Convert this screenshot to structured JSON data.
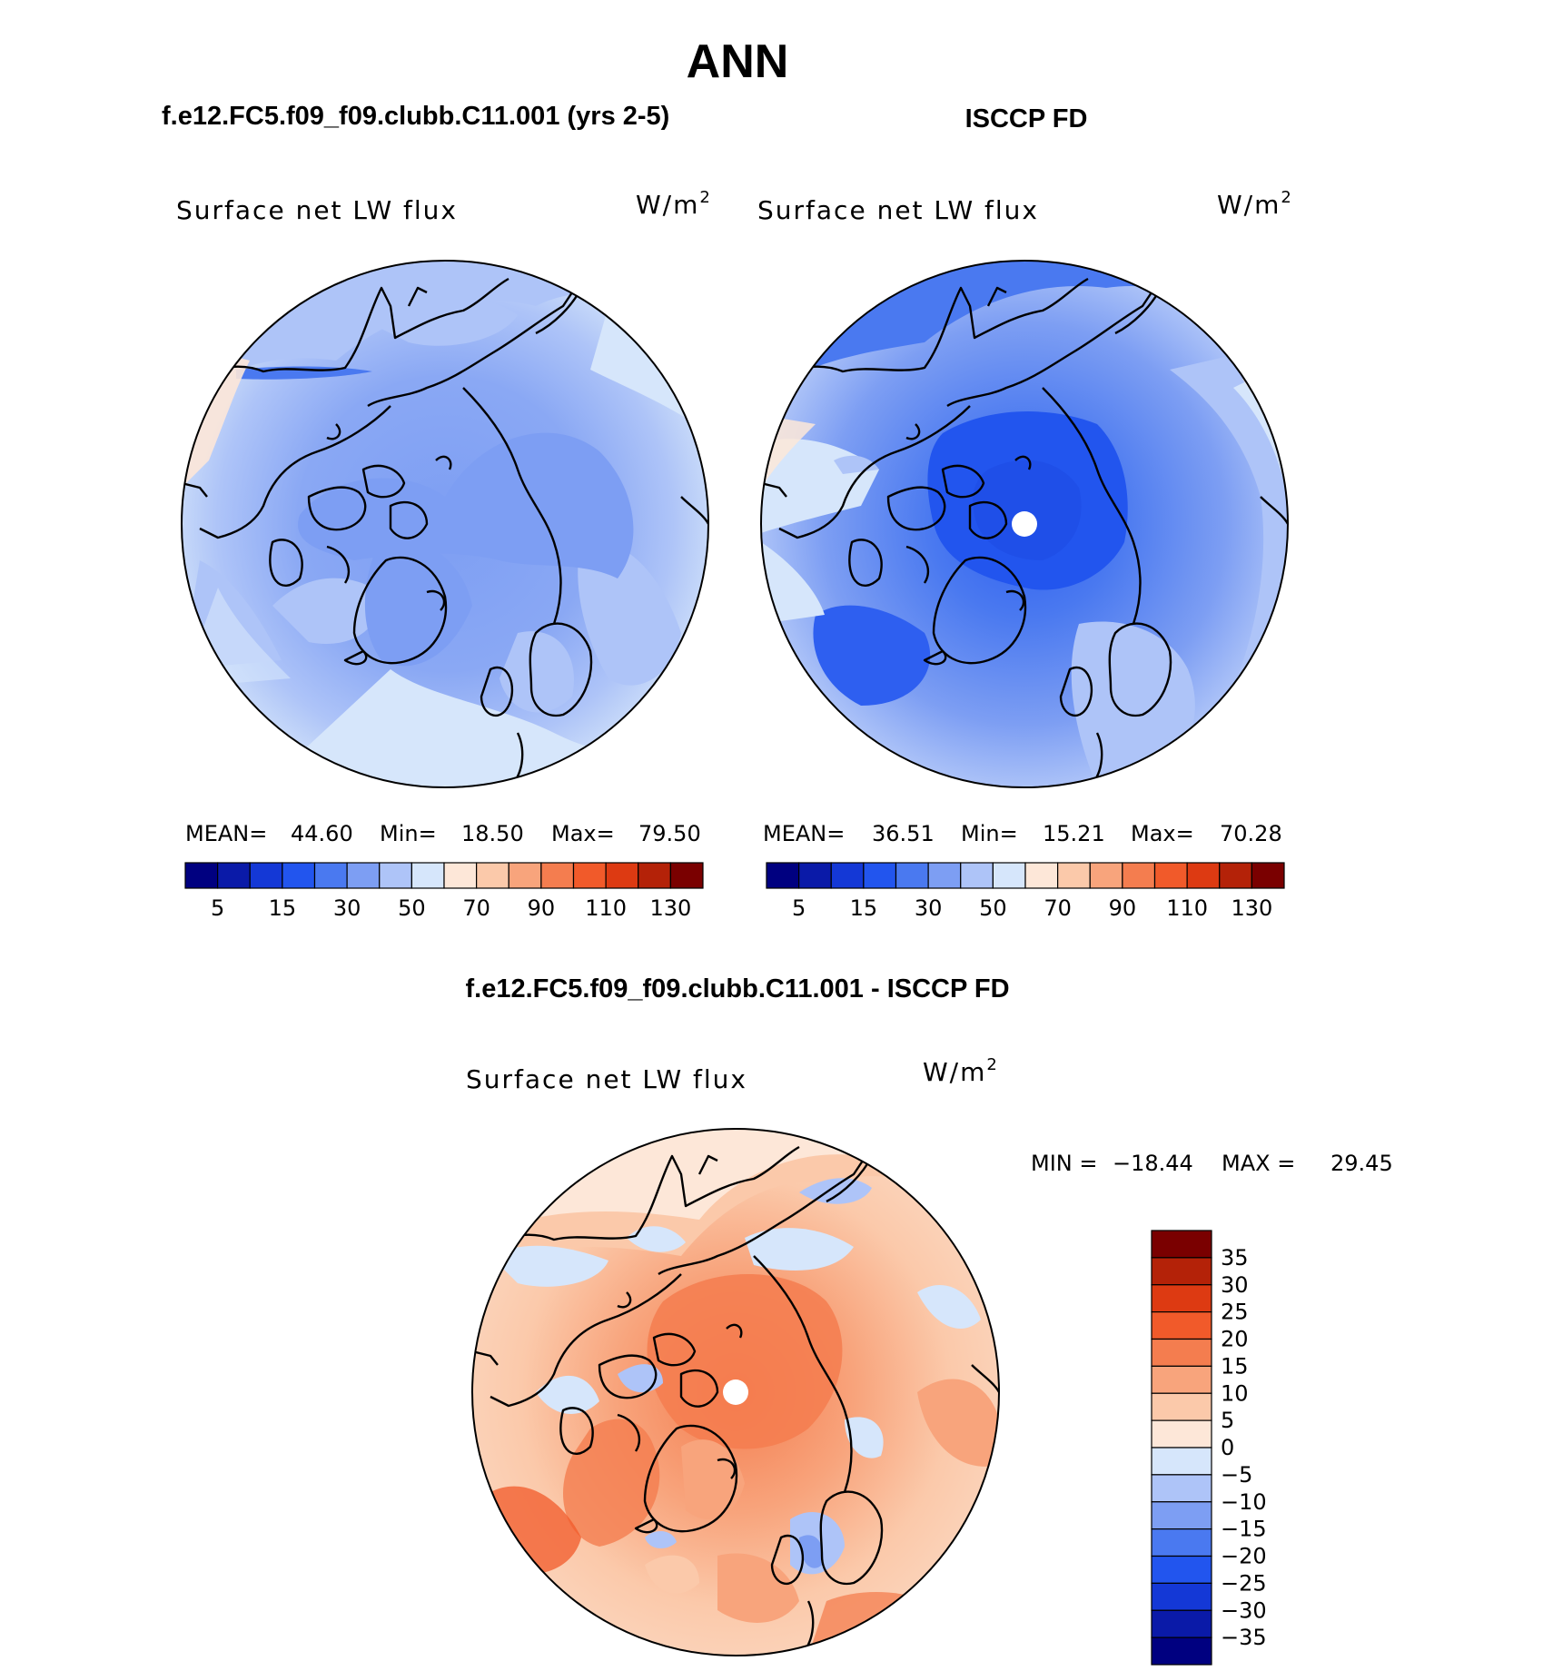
{
  "figure": {
    "title": "ANN",
    "top_left_title": "f.e12.FC5.f09_f09.clubb.C11.001 (yrs 2-5)",
    "top_right_title": "ISCCP FD",
    "bottom_title": "f.e12.FC5.f09_f09.clubb.C11.001 - ISCCP FD"
  },
  "chart_data": [
    {
      "type": "heatmap",
      "projection": "north polar stereographic",
      "variable": "Surface net LW flux",
      "units": "W/m",
      "units_exp": "2",
      "stats": {
        "mean_label": "MEAN=",
        "mean": "44.60",
        "min_label": "Min=",
        "min": "18.50",
        "max_label": "Max=",
        "max": "79.50"
      },
      "levels": [
        5,
        10,
        15,
        20,
        30,
        40,
        50,
        60,
        70,
        80,
        90,
        100,
        110,
        120,
        130
      ],
      "tick_labels": [
        "5",
        "15",
        "30",
        "50",
        "70",
        "90",
        "110",
        "130"
      ],
      "colors": [
        "#000080",
        "#0a1aa8",
        "#1438d6",
        "#2255ee",
        "#4a79f0",
        "#7d9ef3",
        "#aec4f8",
        "#d6e6fb",
        "#fde7d8",
        "#fbc9aa",
        "#f8a47c",
        "#f47d4f",
        "#f15a2a",
        "#dd3a12",
        "#b42208",
        "#7a0000"
      ]
    },
    {
      "type": "heatmap",
      "projection": "north polar stereographic",
      "variable": "Surface net LW flux",
      "units": "W/m",
      "units_exp": "2",
      "stats": {
        "mean_label": "MEAN=",
        "mean": "36.51",
        "min_label": "Min=",
        "min": "15.21",
        "max_label": "Max=",
        "max": "70.28"
      },
      "levels": [
        5,
        10,
        15,
        20,
        30,
        40,
        50,
        60,
        70,
        80,
        90,
        100,
        110,
        120,
        130
      ],
      "tick_labels": [
        "5",
        "15",
        "30",
        "50",
        "70",
        "90",
        "110",
        "130"
      ],
      "colors": [
        "#000080",
        "#0a1aa8",
        "#1438d6",
        "#2255ee",
        "#4a79f0",
        "#7d9ef3",
        "#aec4f8",
        "#d6e6fb",
        "#fde7d8",
        "#fbc9aa",
        "#f8a47c",
        "#f47d4f",
        "#f15a2a",
        "#dd3a12",
        "#b42208",
        "#7a0000"
      ]
    },
    {
      "type": "heatmap",
      "projection": "north polar stereographic",
      "variable": "Surface net LW flux",
      "units": "W/m",
      "units_exp": "2",
      "stats": {
        "min_label": "MIN =",
        "min": "−18.44",
        "max_label": "MAX =",
        "max": "29.45"
      },
      "levels": [
        -35,
        -30,
        -25,
        -20,
        -15,
        -10,
        -5,
        0,
        5,
        10,
        15,
        20,
        25,
        30,
        35
      ],
      "tick_labels": [
        "35",
        "30",
        "25",
        "20",
        "15",
        "10",
        "5",
        "0",
        "−5",
        "−10",
        "−15",
        "−20",
        "−25",
        "−30",
        "−35"
      ],
      "colors": [
        "#7a0000",
        "#b42208",
        "#dd3a12",
        "#f15a2a",
        "#f47d4f",
        "#f8a47c",
        "#fbc9aa",
        "#fde7d8",
        "#d6e6fb",
        "#aec4f8",
        "#7d9ef3",
        "#4a79f0",
        "#2255ee",
        "#1438d6",
        "#0a1aa8",
        "#000080"
      ]
    }
  ]
}
